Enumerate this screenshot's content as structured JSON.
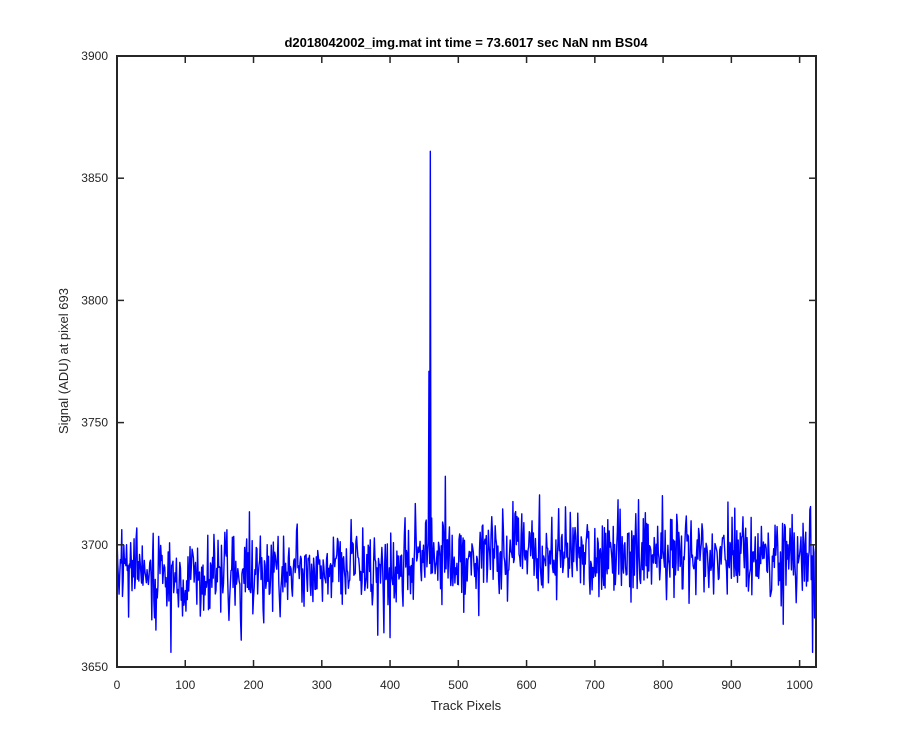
{
  "chart_data": {
    "type": "line",
    "title": "d2018042002_img.mat int time = 73.6017 sec  NaN nm BS04",
    "xlabel": "Track Pixels",
    "ylabel": "Signal (ADU) at pixel 693",
    "xlim": [
      0,
      1024
    ],
    "ylim": [
      3650,
      3900
    ],
    "xticks": [
      0,
      100,
      200,
      300,
      400,
      500,
      600,
      700,
      800,
      900,
      1000
    ],
    "yticks": [
      3650,
      3700,
      3750,
      3800,
      3850,
      3900
    ],
    "grid": false,
    "line_color": "#0000ff",
    "series": [
      {
        "noise": "dense pixel-to-pixel noise, std about 9 ADU",
        "baseline_points": [
          [
            0,
            3688
          ],
          [
            200,
            3689
          ],
          [
            400,
            3690
          ],
          [
            460,
            3694
          ],
          [
            600,
            3697
          ],
          [
            800,
            3697
          ],
          [
            1024,
            3693
          ]
        ],
        "features": [
          {
            "x": 457,
            "y": 3771
          },
          {
            "x": 459,
            "y": 3861
          },
          {
            "x": 481,
            "y": 3728
          },
          {
            "x": 79,
            "y": 3656
          },
          {
            "x": 1019,
            "y": 3656
          },
          {
            "x": 182,
            "y": 3661
          },
          {
            "x": 382,
            "y": 3663
          },
          {
            "x": 400,
            "y": 3662
          }
        ]
      }
    ]
  }
}
